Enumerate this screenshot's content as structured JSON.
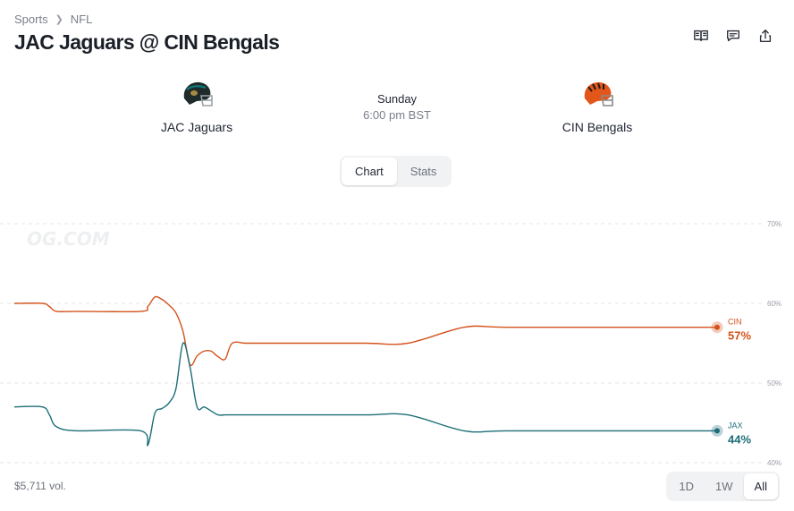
{
  "breadcrumb": {
    "root": "Sports",
    "current": "NFL"
  },
  "title": "JAC Jaguars @ CIN Bengals",
  "teams": {
    "away": {
      "name": "JAC Jaguars",
      "helmet_color": "#1f2a2a",
      "accent": "#0f7a7a"
    },
    "home": {
      "name": "CIN Bengals",
      "helmet_color": "#e2561a",
      "accent": "#1b1b1b"
    }
  },
  "game": {
    "day": "Sunday",
    "time": "6:00 pm BST"
  },
  "view_tabs": [
    {
      "label": "Chart",
      "active": true
    },
    {
      "label": "Stats",
      "active": false
    }
  ],
  "watermark": "OG.COM",
  "volume": "$5,711 vol.",
  "range_tabs": [
    {
      "label": "1D",
      "active": false
    },
    {
      "label": "1W",
      "active": false
    },
    {
      "label": "All",
      "active": true
    }
  ],
  "icons": [
    "book-icon",
    "comment-icon",
    "share-icon",
    "chevron-right-icon"
  ],
  "colors": {
    "cin": "#d4521c",
    "jax": "#1e6e78",
    "grid": "#e3e5e8"
  },
  "chart_data": {
    "type": "line",
    "ylim": [
      40,
      70
    ],
    "y_ticks": [
      70,
      60,
      50,
      40
    ],
    "y_tick_labels": [
      "70%",
      "60%",
      "50%",
      "40%"
    ],
    "grid": true,
    "x": [
      0,
      4,
      5,
      6,
      9,
      18,
      19,
      20,
      21,
      22,
      23,
      24,
      25,
      26,
      27,
      28,
      29,
      30,
      31,
      33,
      36,
      40,
      50,
      56,
      64,
      70,
      86,
      100
    ],
    "series": [
      {
        "name": "CIN",
        "label": "57%",
        "color": "#d4521c",
        "values": [
          60,
          60,
          59.6,
          59,
          59,
          59,
          59.6,
          60.8,
          60.5,
          59.8,
          58.8,
          56.5,
          52.3,
          53.4,
          54,
          54,
          53.3,
          53,
          55,
          55,
          55,
          55,
          55,
          55,
          57,
          57,
          57,
          57
        ]
      },
      {
        "name": "JAX",
        "label": "44%",
        "color": "#1e6e78",
        "values": [
          47,
          47,
          46,
          44.5,
          44,
          44,
          42.2,
          46.2,
          46.8,
          47.5,
          49.3,
          55,
          52,
          47,
          47,
          46.5,
          46,
          46,
          46,
          46,
          46,
          46,
          46,
          46,
          44,
          44,
          44,
          44
        ]
      }
    ]
  }
}
